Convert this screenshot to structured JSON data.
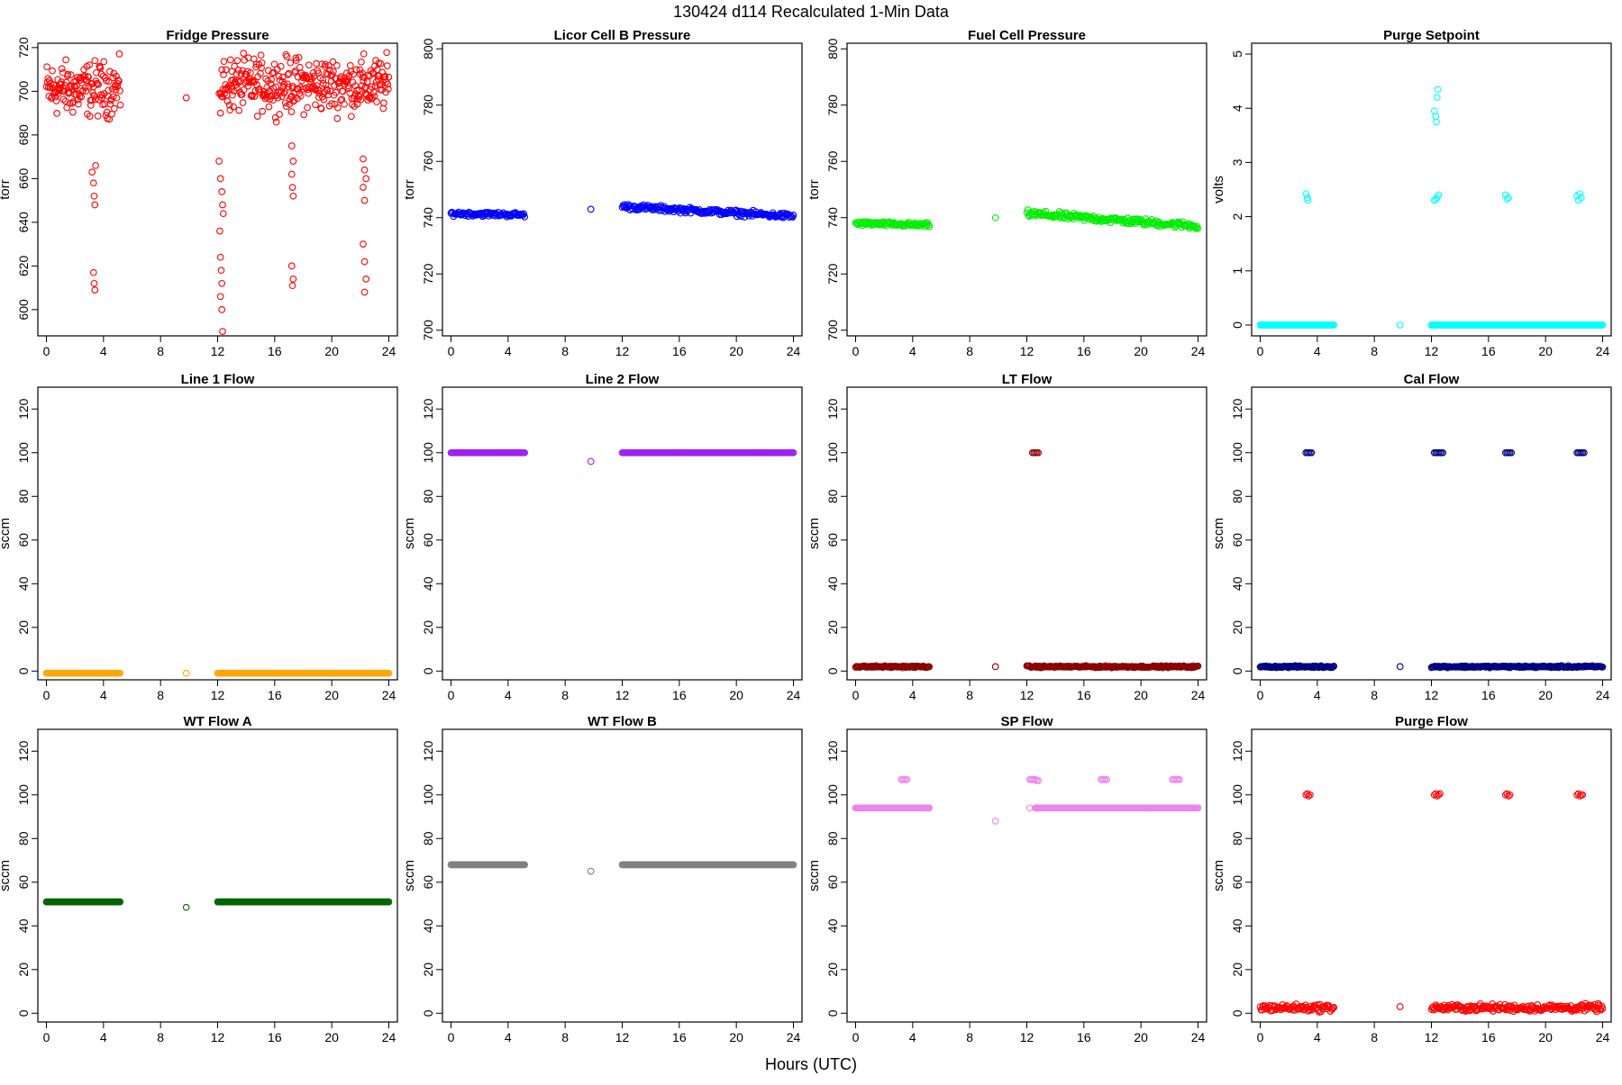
{
  "page": {
    "title": "130424   d114   Recalculated 1-Min Data",
    "x_axis_title": "Hours (UTC)"
  },
  "chart_data": [
    {
      "type": "scatter",
      "title": "Fridge Pressure",
      "ylabel": "torr",
      "color": "#ff0000",
      "xlim": [
        0,
        24
      ],
      "ylim": [
        588,
        722
      ],
      "xticks": [
        0,
        4,
        8,
        12,
        16,
        20,
        24
      ],
      "yticks": [
        600,
        620,
        640,
        660,
        680,
        700,
        720
      ],
      "segments": [
        {
          "x": [
            0,
            5.2
          ],
          "y": 701,
          "spread": 6
        },
        {
          "x": [
            12.2,
            24
          ],
          "y": 703,
          "spread": 6
        }
      ],
      "points": [
        {
          "x": 3.2,
          "y": 663
        },
        {
          "x": 3.3,
          "y": 658
        },
        {
          "x": 3.35,
          "y": 652
        },
        {
          "x": 3.4,
          "y": 648
        },
        {
          "x": 3.45,
          "y": 666
        },
        {
          "x": 3.3,
          "y": 617
        },
        {
          "x": 3.35,
          "y": 612
        },
        {
          "x": 3.4,
          "y": 609
        },
        {
          "x": 9.8,
          "y": 697
        },
        {
          "x": 12.1,
          "y": 699
        },
        {
          "x": 12.2,
          "y": 690
        },
        {
          "x": 12.1,
          "y": 668
        },
        {
          "x": 12.2,
          "y": 660
        },
        {
          "x": 12.3,
          "y": 654
        },
        {
          "x": 12.35,
          "y": 648
        },
        {
          "x": 12.4,
          "y": 644
        },
        {
          "x": 12.15,
          "y": 636
        },
        {
          "x": 12.2,
          "y": 624
        },
        {
          "x": 12.25,
          "y": 618
        },
        {
          "x": 12.3,
          "y": 612
        },
        {
          "x": 12.2,
          "y": 606
        },
        {
          "x": 12.3,
          "y": 600
        },
        {
          "x": 12.35,
          "y": 590
        },
        {
          "x": 17.2,
          "y": 675
        },
        {
          "x": 17.3,
          "y": 668
        },
        {
          "x": 17.2,
          "y": 662
        },
        {
          "x": 17.25,
          "y": 656
        },
        {
          "x": 17.3,
          "y": 652
        },
        {
          "x": 17.2,
          "y": 620
        },
        {
          "x": 17.3,
          "y": 614
        },
        {
          "x": 17.25,
          "y": 611
        },
        {
          "x": 22.2,
          "y": 669
        },
        {
          "x": 22.3,
          "y": 664
        },
        {
          "x": 22.4,
          "y": 660
        },
        {
          "x": 22.2,
          "y": 656
        },
        {
          "x": 22.3,
          "y": 650
        },
        {
          "x": 22.2,
          "y": 630
        },
        {
          "x": 22.3,
          "y": 622
        },
        {
          "x": 22.4,
          "y": 614
        },
        {
          "x": 22.3,
          "y": 608
        }
      ]
    },
    {
      "type": "scatter",
      "title": "Licor Cell B Pressure",
      "ylabel": "torr",
      "color": "#0000ff",
      "xlim": [
        0,
        24
      ],
      "ylim": [
        698,
        802
      ],
      "xticks": [
        0,
        4,
        8,
        12,
        16,
        20,
        24
      ],
      "yticks": [
        700,
        720,
        740,
        760,
        780,
        800
      ],
      "segments": [
        {
          "x": [
            0,
            5.2
          ],
          "y": [
            741.5,
            741
          ],
          "spread": 0.4
        },
        {
          "x": [
            12,
            24
          ],
          "y": [
            744,
            740.5
          ],
          "spread": 0.5
        }
      ],
      "points": [
        {
          "x": 9.8,
          "y": 743
        }
      ]
    },
    {
      "type": "scatter",
      "title": "Fuel Cell Pressure",
      "ylabel": "torr",
      "color": "#00ee00",
      "xlim": [
        0,
        24
      ],
      "ylim": [
        698,
        802
      ],
      "xticks": [
        0,
        4,
        8,
        12,
        16,
        20,
        24
      ],
      "yticks": [
        700,
        720,
        740,
        760,
        780,
        800
      ],
      "segments": [
        {
          "x": [
            0,
            5.2
          ],
          "y": [
            738,
            737.3
          ],
          "spread": 0.4
        },
        {
          "x": [
            12,
            24
          ],
          "y": [
            741.5,
            737
          ],
          "spread": 0.6
        }
      ],
      "points": [
        {
          "x": 9.8,
          "y": 740
        }
      ]
    },
    {
      "type": "scatter",
      "title": "Purge Setpoint",
      "ylabel": "volts",
      "color": "#00ffff",
      "xlim": [
        0,
        24
      ],
      "ylim": [
        -0.2,
        5.2
      ],
      "xticks": [
        0,
        4,
        8,
        12,
        16,
        20,
        24
      ],
      "yticks": [
        0,
        1,
        2,
        3,
        4,
        5
      ],
      "segments": [
        {
          "x": [
            0,
            5.2
          ],
          "y": 0,
          "spread": 0
        },
        {
          "x": [
            12,
            24
          ],
          "y": 0,
          "spread": 0
        }
      ],
      "points": [
        {
          "x": 9.8,
          "y": 0
        },
        {
          "x": 3.2,
          "y": 2.42
        },
        {
          "x": 3.3,
          "y": 2.35
        },
        {
          "x": 3.35,
          "y": 2.3
        },
        {
          "x": 12.2,
          "y": 3.95
        },
        {
          "x": 12.3,
          "y": 3.85
        },
        {
          "x": 12.35,
          "y": 3.75
        },
        {
          "x": 12.4,
          "y": 4.2
        },
        {
          "x": 12.45,
          "y": 4.35
        },
        {
          "x": 12.2,
          "y": 2.3
        },
        {
          "x": 12.3,
          "y": 2.32
        },
        {
          "x": 12.4,
          "y": 2.35
        },
        {
          "x": 12.5,
          "y": 2.4
        },
        {
          "x": 17.2,
          "y": 2.4
        },
        {
          "x": 17.3,
          "y": 2.32
        },
        {
          "x": 17.4,
          "y": 2.35
        },
        {
          "x": 22.2,
          "y": 2.38
        },
        {
          "x": 22.3,
          "y": 2.3
        },
        {
          "x": 22.4,
          "y": 2.42
        },
        {
          "x": 22.5,
          "y": 2.35
        }
      ]
    },
    {
      "type": "scatter",
      "title": "Line 1 Flow",
      "ylabel": "sccm",
      "color": "#ffa500",
      "xlim": [
        0,
        24
      ],
      "ylim": [
        -4,
        130
      ],
      "xticks": [
        0,
        4,
        8,
        12,
        16,
        20,
        24
      ],
      "yticks": [
        0,
        20,
        40,
        60,
        80,
        100,
        120
      ],
      "segments": [
        {
          "x": [
            0,
            5.2
          ],
          "y": -1,
          "spread": 0
        },
        {
          "x": [
            12,
            24
          ],
          "y": -1,
          "spread": 0
        }
      ],
      "points": [
        {
          "x": 9.8,
          "y": -1
        }
      ]
    },
    {
      "type": "scatter",
      "title": "Line 2 Flow",
      "ylabel": "sccm",
      "color": "#a020f0",
      "xlim": [
        0,
        24
      ],
      "ylim": [
        -4,
        130
      ],
      "xticks": [
        0,
        4,
        8,
        12,
        16,
        20,
        24
      ],
      "yticks": [
        0,
        20,
        40,
        60,
        80,
        100,
        120
      ],
      "segments": [
        {
          "x": [
            0,
            5.2
          ],
          "y": 100,
          "spread": 0
        },
        {
          "x": [
            12,
            24
          ],
          "y": 100,
          "spread": 0
        }
      ],
      "points": [
        {
          "x": 9.8,
          "y": 96
        }
      ]
    },
    {
      "type": "scatter",
      "title": "LT Flow",
      "ylabel": "sccm",
      "color": "#8b0000",
      "xlim": [
        0,
        24
      ],
      "ylim": [
        -4,
        130
      ],
      "xticks": [
        0,
        4,
        8,
        12,
        16,
        20,
        24
      ],
      "yticks": [
        0,
        20,
        40,
        60,
        80,
        100,
        120
      ],
      "segments": [
        {
          "x": [
            0,
            5.2
          ],
          "y": 2,
          "spread": 0.2
        },
        {
          "x": [
            12,
            24
          ],
          "y": 2,
          "spread": 0.2
        }
      ],
      "points": [
        {
          "x": 9.8,
          "y": 2
        },
        {
          "x": 12.4,
          "y": 100
        },
        {
          "x": 12.5,
          "y": 100
        },
        {
          "x": 12.6,
          "y": 100
        },
        {
          "x": 12.7,
          "y": 100
        },
        {
          "x": 12.8,
          "y": 100
        }
      ]
    },
    {
      "type": "scatter",
      "title": "Cal Flow",
      "ylabel": "sccm",
      "color": "#000080",
      "xlim": [
        0,
        24
      ],
      "ylim": [
        -4,
        130
      ],
      "xticks": [
        0,
        4,
        8,
        12,
        16,
        20,
        24
      ],
      "yticks": [
        0,
        20,
        40,
        60,
        80,
        100,
        120
      ],
      "segments": [
        {
          "x": [
            0,
            5.2
          ],
          "y": 2,
          "spread": 0.2
        },
        {
          "x": [
            12,
            24
          ],
          "y": 2,
          "spread": 0.2
        }
      ],
      "points": [
        {
          "x": 9.8,
          "y": 2
        },
        {
          "x": 3.2,
          "y": 100
        },
        {
          "x": 3.3,
          "y": 100
        },
        {
          "x": 3.4,
          "y": 100
        },
        {
          "x": 3.5,
          "y": 100
        },
        {
          "x": 3.6,
          "y": 100
        },
        {
          "x": 12.2,
          "y": 100
        },
        {
          "x": 12.3,
          "y": 100
        },
        {
          "x": 12.4,
          "y": 100
        },
        {
          "x": 12.5,
          "y": 100
        },
        {
          "x": 12.6,
          "y": 100
        },
        {
          "x": 12.7,
          "y": 100
        },
        {
          "x": 12.8,
          "y": 100
        },
        {
          "x": 17.2,
          "y": 100
        },
        {
          "x": 17.3,
          "y": 100
        },
        {
          "x": 17.4,
          "y": 100
        },
        {
          "x": 17.5,
          "y": 100
        },
        {
          "x": 17.6,
          "y": 100
        },
        {
          "x": 22.2,
          "y": 100
        },
        {
          "x": 22.3,
          "y": 100
        },
        {
          "x": 22.4,
          "y": 100
        },
        {
          "x": 22.5,
          "y": 100
        },
        {
          "x": 22.6,
          "y": 100
        },
        {
          "x": 22.7,
          "y": 100
        }
      ]
    },
    {
      "type": "scatter",
      "title": "WT Flow A",
      "ylabel": "sccm",
      "color": "#006400",
      "xlim": [
        0,
        24
      ],
      "ylim": [
        -4,
        130
      ],
      "xticks": [
        0,
        4,
        8,
        12,
        16,
        20,
        24
      ],
      "yticks": [
        0,
        20,
        40,
        60,
        80,
        100,
        120
      ],
      "segments": [
        {
          "x": [
            0,
            5.2
          ],
          "y": 51,
          "spread": 0
        },
        {
          "x": [
            12,
            24
          ],
          "y": 51,
          "spread": 0
        }
      ],
      "points": [
        {
          "x": 9.8,
          "y": 48.5
        }
      ]
    },
    {
      "type": "scatter",
      "title": "WT Flow B",
      "ylabel": "sccm",
      "color": "#808080",
      "xlim": [
        0,
        24
      ],
      "ylim": [
        -4,
        130
      ],
      "xticks": [
        0,
        4,
        8,
        12,
        16,
        20,
        24
      ],
      "yticks": [
        0,
        20,
        40,
        60,
        80,
        100,
        120
      ],
      "segments": [
        {
          "x": [
            0,
            5.2
          ],
          "y": 68,
          "spread": 0
        },
        {
          "x": [
            12,
            24
          ],
          "y": 68,
          "spread": 0
        }
      ],
      "points": [
        {
          "x": 9.8,
          "y": 65
        }
      ]
    },
    {
      "type": "scatter",
      "title": "SP Flow",
      "ylabel": "sccm",
      "color": "#ee82ee",
      "xlim": [
        0,
        24
      ],
      "ylim": [
        -4,
        130
      ],
      "xticks": [
        0,
        4,
        8,
        12,
        16,
        20,
        24
      ],
      "yticks": [
        0,
        20,
        40,
        60,
        80,
        100,
        120
      ],
      "segments": [
        {
          "x": [
            0,
            5.2
          ],
          "y": 94,
          "spread": 0
        },
        {
          "x": [
            12.6,
            24
          ],
          "y": 94,
          "spread": 0
        }
      ],
      "points": [
        {
          "x": 9.8,
          "y": 88
        },
        {
          "x": 12.2,
          "y": 94
        },
        {
          "x": 3.2,
          "y": 107
        },
        {
          "x": 3.3,
          "y": 107
        },
        {
          "x": 3.4,
          "y": 107
        },
        {
          "x": 3.5,
          "y": 107
        },
        {
          "x": 3.6,
          "y": 107
        },
        {
          "x": 12.2,
          "y": 107
        },
        {
          "x": 12.3,
          "y": 107
        },
        {
          "x": 12.4,
          "y": 107
        },
        {
          "x": 12.5,
          "y": 107
        },
        {
          "x": 12.6,
          "y": 107
        },
        {
          "x": 12.7,
          "y": 106.5
        },
        {
          "x": 12.8,
          "y": 106.5
        },
        {
          "x": 17.2,
          "y": 107
        },
        {
          "x": 17.3,
          "y": 107
        },
        {
          "x": 17.4,
          "y": 107
        },
        {
          "x": 17.5,
          "y": 107
        },
        {
          "x": 17.6,
          "y": 107
        },
        {
          "x": 22.2,
          "y": 107
        },
        {
          "x": 22.3,
          "y": 107
        },
        {
          "x": 22.4,
          "y": 107
        },
        {
          "x": 22.5,
          "y": 107
        },
        {
          "x": 22.6,
          "y": 107
        },
        {
          "x": 22.7,
          "y": 107
        }
      ]
    },
    {
      "type": "scatter",
      "title": "Purge Flow",
      "ylabel": "sccm",
      "color": "#ff0000",
      "xlim": [
        0,
        24
      ],
      "ylim": [
        -4,
        130
      ],
      "xticks": [
        0,
        4,
        8,
        12,
        16,
        20,
        24
      ],
      "yticks": [
        0,
        20,
        40,
        60,
        80,
        100,
        120
      ],
      "segments": [
        {
          "x": [
            0,
            5.2
          ],
          "y": 2.5,
          "spread": 0.8
        },
        {
          "x": [
            12,
            24
          ],
          "y": 2.5,
          "spread": 0.8
        }
      ],
      "points": [
        {
          "x": 9.8,
          "y": 3
        },
        {
          "x": 3.2,
          "y": 100
        },
        {
          "x": 3.3,
          "y": 100.5
        },
        {
          "x": 3.4,
          "y": 99.5
        },
        {
          "x": 3.5,
          "y": 100
        },
        {
          "x": 12.2,
          "y": 100
        },
        {
          "x": 12.3,
          "y": 100.5
        },
        {
          "x": 12.4,
          "y": 99.5
        },
        {
          "x": 12.5,
          "y": 100
        },
        {
          "x": 12.6,
          "y": 100.5
        },
        {
          "x": 17.2,
          "y": 100
        },
        {
          "x": 17.3,
          "y": 100.5
        },
        {
          "x": 17.4,
          "y": 99.5
        },
        {
          "x": 17.5,
          "y": 100
        },
        {
          "x": 22.2,
          "y": 100
        },
        {
          "x": 22.3,
          "y": 100.5
        },
        {
          "x": 22.4,
          "y": 99.5
        },
        {
          "x": 22.5,
          "y": 100
        },
        {
          "x": 22.6,
          "y": 100
        }
      ]
    }
  ]
}
